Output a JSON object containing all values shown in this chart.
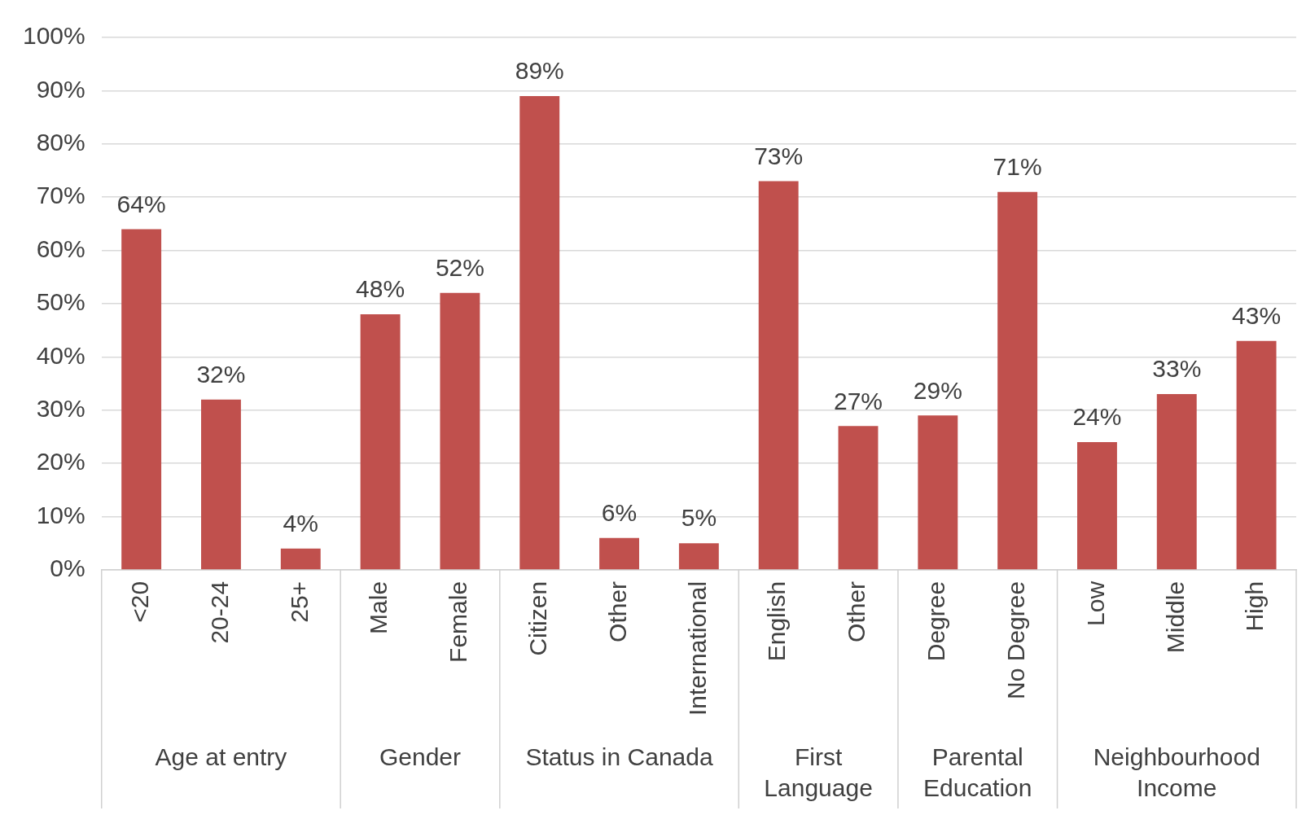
{
  "chart_data": {
    "type": "bar",
    "categories": [
      "<20",
      "20-24",
      "25+",
      "Male",
      "Female",
      "Citizen",
      "Other",
      "International",
      "English",
      "Other",
      "Degree",
      "No Degree",
      "Low",
      "Middle",
      "High"
    ],
    "values": [
      64,
      32,
      4,
      48,
      52,
      89,
      6,
      5,
      73,
      27,
      29,
      71,
      24,
      33,
      43
    ],
    "value_labels": [
      "64%",
      "32%",
      "4%",
      "48%",
      "52%",
      "89%",
      "6%",
      "5%",
      "73%",
      "27%",
      "29%",
      "71%",
      "24%",
      "33%",
      "43%"
    ],
    "color": "#c0504d",
    "ylim": [
      0,
      100
    ],
    "yticks": [
      {
        "value": 0,
        "label": "0%"
      },
      {
        "value": 10,
        "label": "10%"
      },
      {
        "value": 20,
        "label": "20%"
      },
      {
        "value": 30,
        "label": "30%"
      },
      {
        "value": 40,
        "label": "40%"
      },
      {
        "value": 50,
        "label": "50%"
      },
      {
        "value": 60,
        "label": "60%"
      },
      {
        "value": 70,
        "label": "70%"
      },
      {
        "value": 80,
        "label": "80%"
      },
      {
        "value": 90,
        "label": "90%"
      },
      {
        "value": 100,
        "label": "100%"
      }
    ],
    "grid": "y",
    "annotations": [
      "Age at entry",
      "Gender",
      "Status in Canada",
      "First Language",
      "Parental Education",
      "Neighbourhood Income"
    ]
  }
}
